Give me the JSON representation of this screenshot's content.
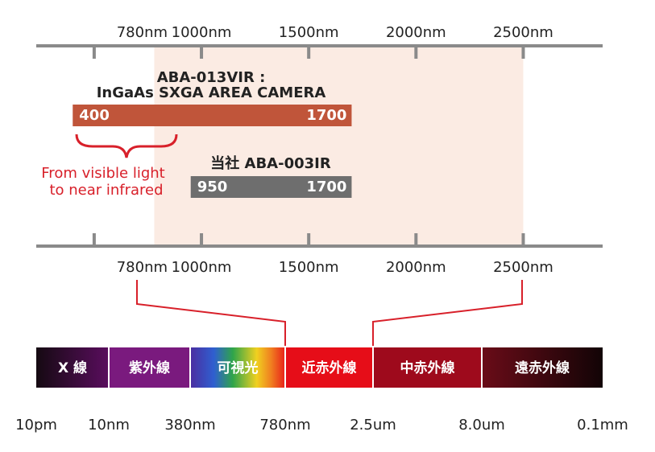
{
  "axis": {
    "xlim": [
      230,
      2870
    ],
    "ticks": [
      500,
      {
        "value": 1000,
        "label": "1000nm"
      },
      {
        "value": 1500,
        "label": "1500nm"
      },
      {
        "value": 2000,
        "label": "2000nm"
      },
      {
        "value": 2500,
        "label": "2500nm"
      }
    ],
    "marker": {
      "value": 780,
      "label": "780nm"
    },
    "highlight": [
      780,
      2500
    ]
  },
  "sensors": [
    {
      "name": "ABA-013VIR :",
      "subtitle": "InGaAs SXGA AREA CAMERA",
      "min": 400,
      "max": 1700,
      "color": "#c0553a"
    },
    {
      "name": "当社 ABA-003IR",
      "min": 950,
      "max": 1700,
      "color": "#6e6e6e"
    }
  ],
  "annotation": [
    "From visible light",
    "to near infrared"
  ],
  "spectrum": {
    "bands": [
      "X 線",
      "紫外線",
      "可視光",
      "近赤外線",
      "中赤外線",
      "遠赤外線"
    ],
    "boundaries": [
      "10pm",
      "10nm",
      "380nm",
      "780nm",
      "2.5um",
      "8.0um",
      "0.1mm"
    ]
  }
}
